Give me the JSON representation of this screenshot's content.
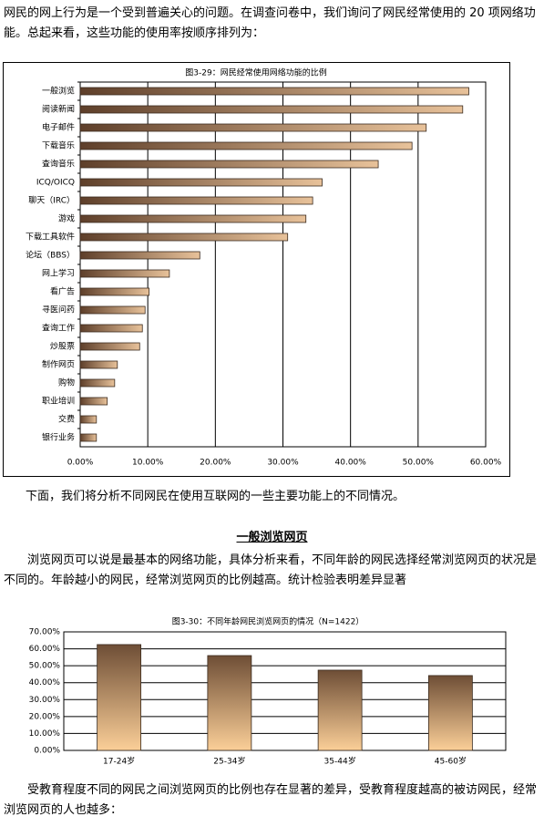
{
  "paragraphs": [
    "网民的网上行为是一个受到普遍关心的问题。在调查问卷中，我们询问了网民经常使用的 20 项网络功能。总起来看，这些功能的使用率按顺序排列为：",
    "下面，我们将分析不同网民在使用互联网的一些主要功能上的不同情况。",
    "浏览网页可以说是最基本的网络功能，具体分析来看，不同年龄的网民选择经常浏览网页的状况是不同的。年龄越小的网民，经常浏览网页的比例越高。统计检验表明差异显著",
    "受教育程度不同的网民之间浏览网页的比例也存在显著的差异，受教育程度越高的被访网民，经常浏览网页的人也越多："
  ],
  "heading": "一般浏览网页",
  "chart_data": [
    {
      "type": "hbar",
      "title": "图3-29：网民经常使用网络功能的比例",
      "categories": [
        "一般浏览",
        "阅读新闻",
        "电子邮件",
        "下载音乐",
        "查询音乐",
        "ICQ/OICQ",
        "聊天（IRC）",
        "游戏",
        "下载工具软件",
        "论坛（BBS）",
        "网上学习",
        "看广告",
        "寻医问药",
        "查询工作",
        "炒股票",
        "制作网页",
        "购物",
        "职业培训",
        "交费",
        "银行业务"
      ],
      "values": [
        57.5,
        56.6,
        51.2,
        49.1,
        44.1,
        35.8,
        34.4,
        33.4,
        30.7,
        17.7,
        13.2,
        10.2,
        9.6,
        9.2,
        8.8,
        5.5,
        5.1,
        4.0,
        2.4,
        2.4
      ],
      "gradient": [
        "#5e3f2a",
        "#e8c29a"
      ],
      "xlim": [
        0,
        60
      ],
      "xticks": [
        {
          "value": 0,
          "label": "0.00%"
        },
        {
          "value": 10,
          "label": "10.00%"
        },
        {
          "value": 20,
          "label": "20.00%"
        },
        {
          "value": 30,
          "label": "30.00%"
        },
        {
          "value": 40,
          "label": "40.00%"
        },
        {
          "value": 50,
          "label": "50.00%"
        },
        {
          "value": 60,
          "label": "60.00%"
        }
      ],
      "grid": true
    },
    {
      "type": "bar",
      "title": "图3-30：不同年龄网民浏览网页的情况（N=1422）",
      "categories": [
        "17-24岁",
        "25-34岁",
        "35-44岁",
        "45-60岁"
      ],
      "values": [
        62.5,
        56,
        47.4,
        44.2
      ],
      "gradient": [
        "#6e4e36",
        "#fbcf98"
      ],
      "ylim": [
        0,
        70
      ],
      "yticks": [
        {
          "value": 0,
          "label": "0.00%"
        },
        {
          "value": 10,
          "label": "10.00%"
        },
        {
          "value": 20,
          "label": "20.00%"
        },
        {
          "value": 30,
          "label": "30.00%"
        },
        {
          "value": 40,
          "label": "40.00%"
        },
        {
          "value": 50,
          "label": "50.00%"
        },
        {
          "value": 60,
          "label": "60.00%"
        },
        {
          "value": 70,
          "label": "70.00%"
        }
      ],
      "grid": true
    }
  ]
}
